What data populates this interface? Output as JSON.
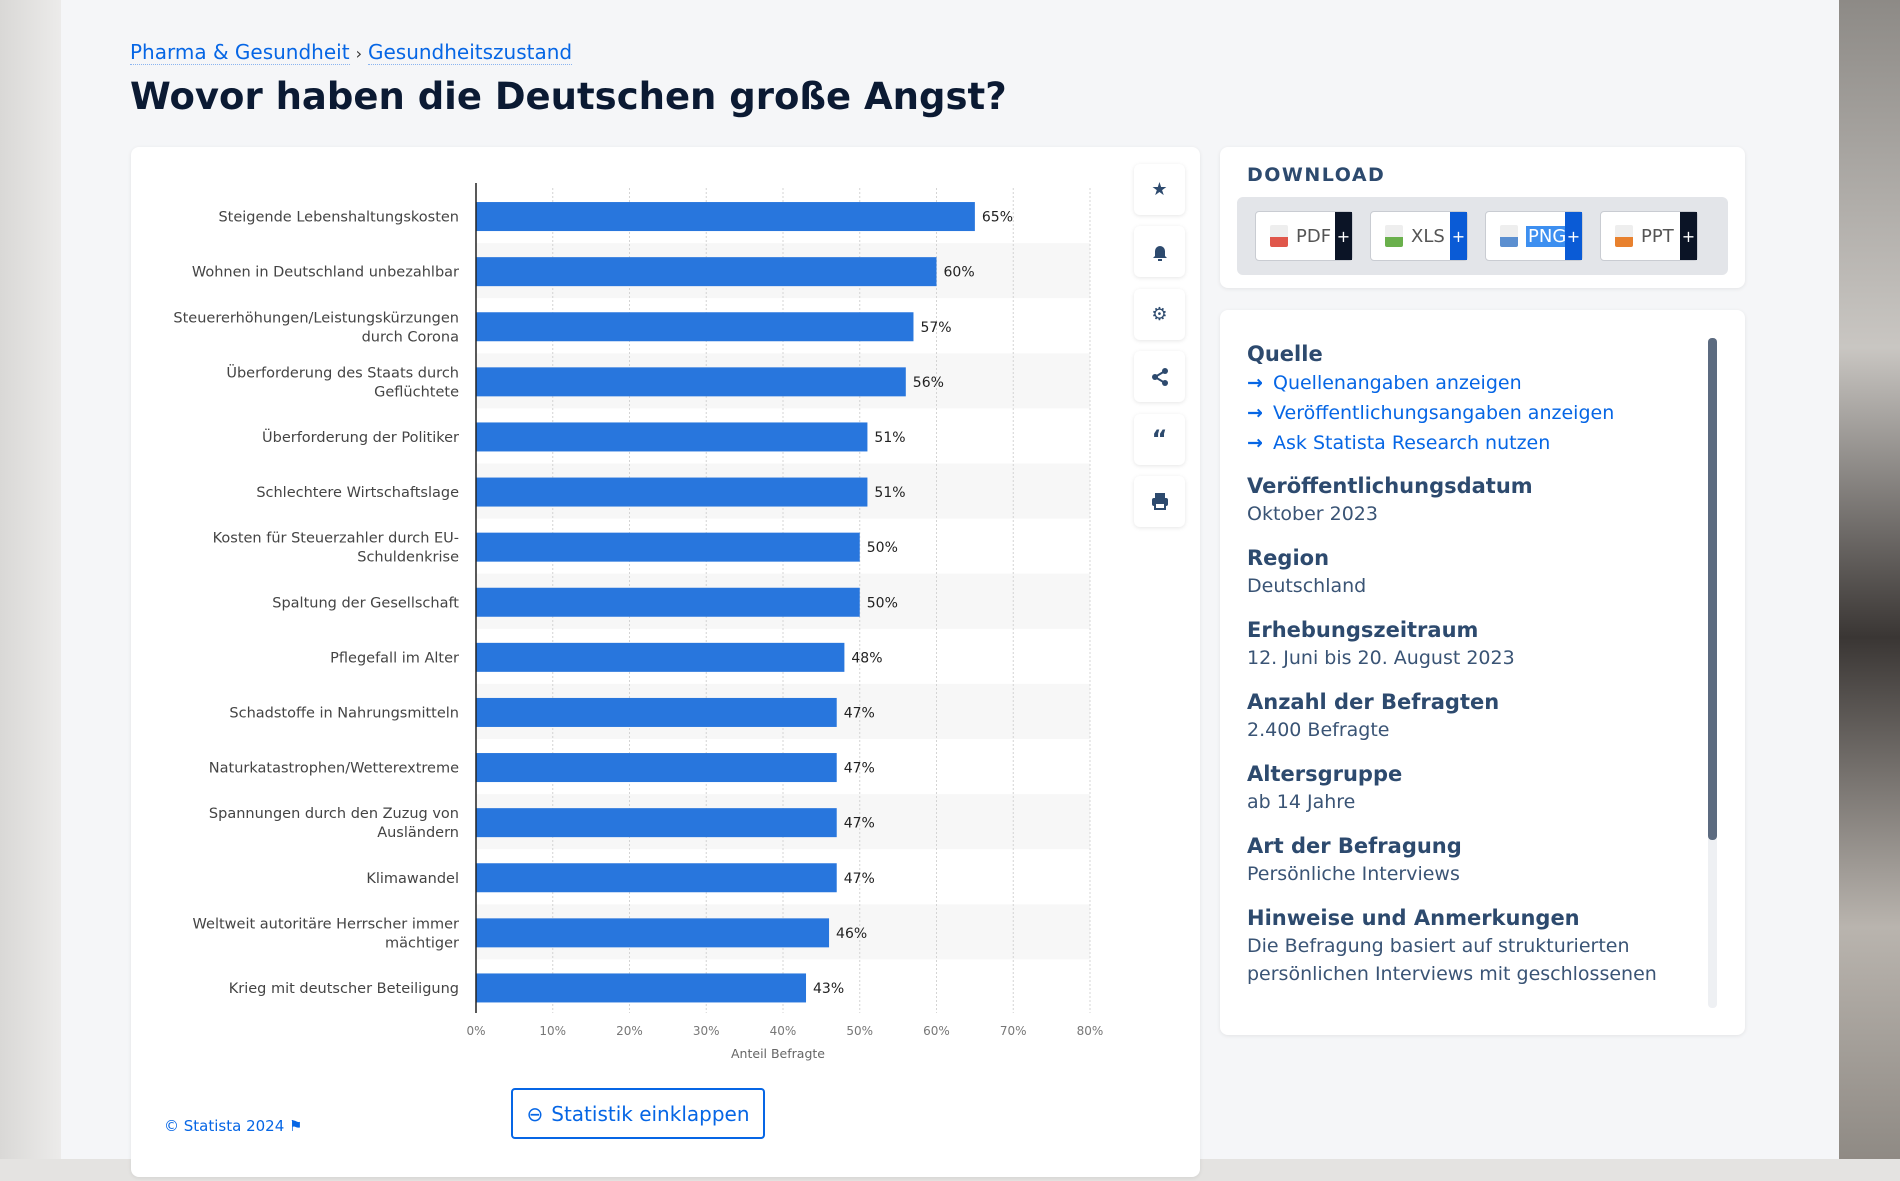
{
  "breadcrumb": [
    "Pharma & Gesundheit",
    "Gesundheitszustand"
  ],
  "title": "Wovor haben die Deutschen große Angst?",
  "chart_data": {
    "type": "bar",
    "orientation": "horizontal",
    "categories": [
      "Steigende Lebenshaltungskosten",
      "Wohnen in Deutschland unbezahlbar",
      "Steuererhöhungen/Leistungskürzungen|durch Corona",
      "Überforderung des Staats durch|Geflüchtete",
      "Überforderung der Politiker",
      "Schlechtere Wirtschaftslage",
      "Kosten für Steuerzahler durch EU-|Schuldenkrise",
      "Spaltung der Gesellschaft",
      "Pflegefall im Alter",
      "Schadstoffe in Nahrungsmitteln",
      "Naturkatastrophen/Wetterextreme",
      "Spannungen durch den Zuzug von|Ausländern",
      "Klimawandel",
      "Weltweit autoritäre Herrscher immer|mächtiger",
      "Krieg mit deutscher Beteiligung"
    ],
    "values": [
      65,
      60,
      57,
      56,
      51,
      51,
      50,
      50,
      48,
      47,
      47,
      47,
      47,
      46,
      43
    ],
    "xlabel": "Anteil Befragte",
    "xlim": [
      0,
      80
    ],
    "ticks": [
      "0%",
      "10%",
      "20%",
      "30%",
      "40%",
      "50%",
      "60%",
      "70%",
      "80%"
    ],
    "bar_color": "#2876dd",
    "grid": true
  },
  "actions": [
    "star-icon",
    "bell-icon",
    "gear-icon",
    "share-icon",
    "quote-icon",
    "print-icon"
  ],
  "collapse_label": "Statistik einklappen",
  "copyright": "© Statista 2024",
  "download": {
    "title": "DOWNLOAD",
    "buttons": [
      {
        "label": "PDF",
        "color": "#e0574b",
        "plus": "#0b1426"
      },
      {
        "label": "XLS",
        "color": "#6ab04c",
        "plus": "#0a5bd6"
      },
      {
        "label": "PNG",
        "color": "#5b8fd0",
        "plus": "#0a5bd6"
      },
      {
        "label": "PPT",
        "color": "#e8812e",
        "plus": "#0b1426"
      }
    ],
    "plus": "+"
  },
  "info": {
    "source_title": "Quelle",
    "links": [
      "Quellenangaben anzeigen",
      "Veröffentlichungsangaben anzeigen",
      "Ask Statista Research nutzen"
    ],
    "items": [
      {
        "h": "Veröffentlichungsdatum",
        "v": "Oktober 2023"
      },
      {
        "h": "Region",
        "v": "Deutschland"
      },
      {
        "h": "Erhebungszeitraum",
        "v": "12. Juni bis 20. August 2023"
      },
      {
        "h": "Anzahl der Befragten",
        "v": "2.400 Befragte"
      },
      {
        "h": "Altersgruppe",
        "v": "ab 14 Jahre"
      },
      {
        "h": "Art der Befragung",
        "v": "Persönliche Interviews"
      },
      {
        "h": "Hinweise und Anmerkungen",
        "v": "Die Befragung basiert auf strukturierten persönlichen Interviews mit geschlossenen"
      }
    ]
  }
}
